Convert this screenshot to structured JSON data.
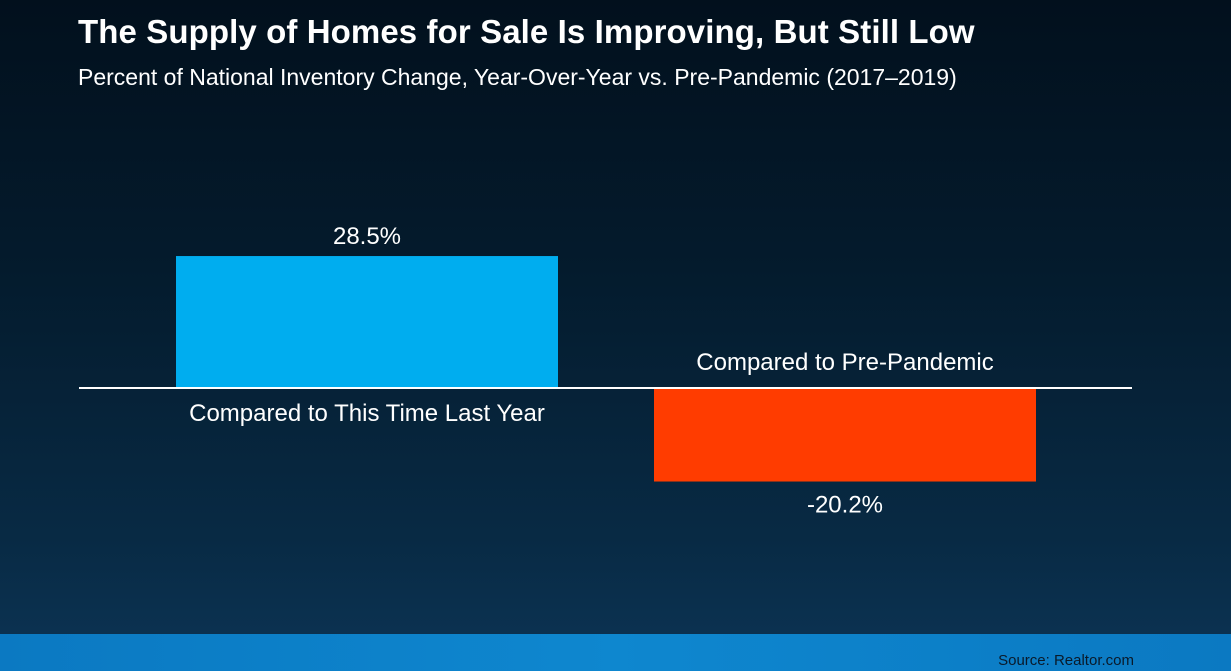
{
  "header": {
    "title": "The Supply of Homes for Sale Is Improving, But Still Low",
    "subtitle": "Percent of National Inventory Change, Year-Over-Year vs. Pre-Pandemic (2017–2019)"
  },
  "footer": {
    "source": "Source: Realtor.com"
  },
  "colors": {
    "positive_bar": "#00adef",
    "negative_bar": "#ff3c00",
    "baseline": "#ffffff"
  },
  "chart_data": {
    "type": "bar",
    "title": "The Supply of Homes for Sale Is Improving, But Still Low",
    "subtitle": "Percent of National Inventory Change, Year-Over-Year vs. Pre-Pandemic (2017–2019)",
    "categories": [
      "Compared to This Time Last Year",
      "Compared to Pre-Pandemic"
    ],
    "values": [
      28.5,
      -20.2
    ],
    "data_labels": [
      "28.5%",
      "-20.2%"
    ],
    "bar_colors": [
      "#00adef",
      "#ff3c00"
    ],
    "ylim": [
      -30,
      40
    ],
    "grid": false,
    "legend": "none"
  }
}
